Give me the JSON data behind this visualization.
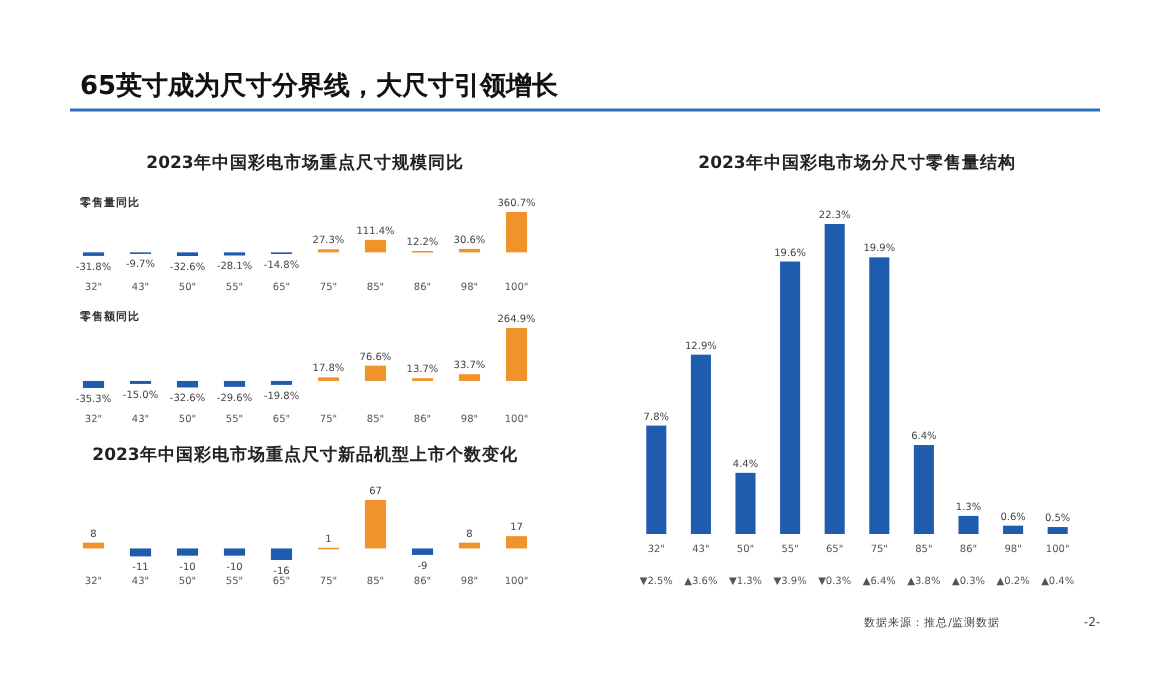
{
  "chart_data": [
    {
      "type": "bar",
      "title": "2023年中国彩电市场重点尺寸规模同比",
      "subtitle": "零售量同比",
      "annotations": [
        "65英寸成为尺寸分界线，大尺寸引领增长"
      ],
      "categories": [
        "32\"",
        "43\"",
        "50\"",
        "55\"",
        "65\"",
        "75\"",
        "85\"",
        "86\"",
        "98\"",
        "100\""
      ],
      "values": [
        -31.8,
        -9.7,
        -32.6,
        -28.1,
        -14.8,
        27.3,
        111.4,
        12.2,
        30.6,
        360.7
      ],
      "colors": [
        "#1f5cad",
        "#1f5cad",
        "#1f5cad",
        "#1f5cad",
        "#1f5cad",
        "#f0932b",
        "#f0932b",
        "#f0932b",
        "#f0932b",
        "#f0932b"
      ],
      "value_labels": [
        "-31.8%",
        "-9.7%",
        "-32.6%",
        "-28.1%",
        "-14.8%",
        "27.3%",
        "111.4%",
        "12.2%",
        "30.6%",
        "360.7%"
      ]
    },
    {
      "type": "bar",
      "subtitle": "零售额同比",
      "categories": [
        "32\"",
        "43\"",
        "50\"",
        "55\"",
        "65\"",
        "75\"",
        "85\"",
        "86\"",
        "98\"",
        "100\""
      ],
      "values": [
        -35.3,
        -15.0,
        -32.6,
        -29.6,
        -19.8,
        17.8,
        76.6,
        13.7,
        33.7,
        264.9
      ],
      "colors": [
        "#1f5cad",
        "#1f5cad",
        "#1f5cad",
        "#1f5cad",
        "#1f5cad",
        "#f0932b",
        "#f0932b",
        "#f0932b",
        "#f0932b",
        "#f0932b"
      ],
      "value_labels": [
        "-35.3%",
        "-15.0%",
        "-32.6%",
        "-29.6%",
        "-19.8%",
        "17.8%",
        "76.6%",
        "13.7%",
        "33.7%",
        "264.9%"
      ]
    },
    {
      "type": "bar",
      "title": "2023年中国彩电市场重点尺寸新品机型上市个数变化",
      "categories": [
        "32\"",
        "43\"",
        "50\"",
        "55\"",
        "65\"",
        "75\"",
        "85\"",
        "86\"",
        "98\"",
        "100\""
      ],
      "values": [
        8,
        -11,
        -10,
        -10,
        -16,
        1,
        67,
        -9,
        8,
        17
      ],
      "colors": [
        "#f0932b",
        "#1f5cad",
        "#1f5cad",
        "#1f5cad",
        "#1f5cad",
        "#f0932b",
        "#f0932b",
        "#1f5cad",
        "#f0932b",
        "#f0932b"
      ],
      "data_labels": true
    },
    {
      "type": "bar",
      "title": "2023年中国彩电市场分尺寸零售量结构",
      "categories": [
        "32\"",
        "43\"",
        "50\"",
        "55\"",
        "65\"",
        "75\"",
        "85\"",
        "86\"",
        "98\"",
        "100\""
      ],
      "values": [
        7.8,
        12.9,
        4.4,
        19.6,
        22.3,
        19.9,
        6.4,
        1.3,
        0.6,
        0.5
      ],
      "colors": [
        "#1f5cad",
        "#1f5cad",
        "#1f5cad",
        "#1f5cad",
        "#1f5cad",
        "#1f5cad",
        "#1f5cad",
        "#1f5cad",
        "#1f5cad",
        "#1f5cad"
      ],
      "value_labels": [
        "7.8%",
        "12.9%",
        "4.4%",
        "19.6%",
        "22.3%",
        "19.9%",
        "6.4%",
        "1.3%",
        "0.6%",
        "0.5%"
      ],
      "annotations": [
        "▼2.5%",
        "▲3.6%",
        "▼1.3%",
        "▼3.9%",
        "▼0.3%",
        "▲6.4%",
        "▲3.8%",
        "▲0.3%",
        "▲0.2%",
        "▲0.4%",
        "数据来源：推总/监测数据",
        "-2-"
      ]
    }
  ]
}
